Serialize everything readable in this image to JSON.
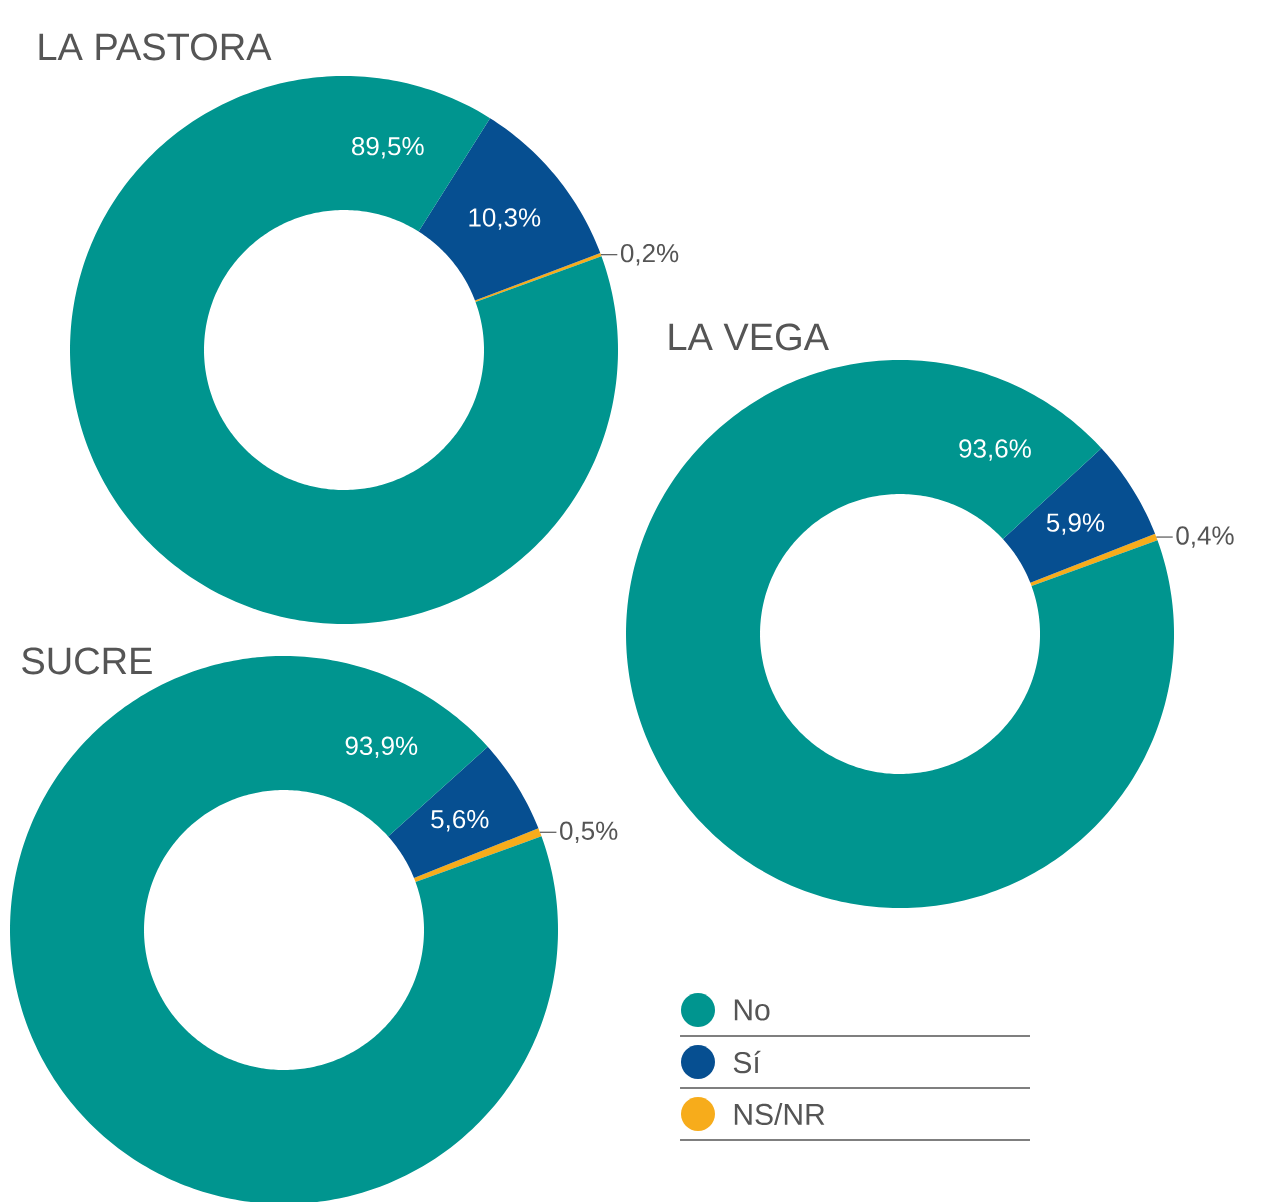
{
  "chart_data": [
    {
      "type": "donut",
      "title": "LA PASTORA",
      "categories": [
        null,
        null,
        null
      ],
      "values": [
        89.5,
        10.3,
        0.2
      ],
      "colors": [
        "#00958f",
        "#064f91",
        "#f7ac1b"
      ],
      "value_labels": [
        "89,5%",
        "10,3%",
        "0,2%"
      ],
      "legend": false
    },
    {
      "type": "donut",
      "title": "LA VEGA",
      "categories": [
        null,
        null,
        null
      ],
      "values": [
        93.6,
        5.9,
        0.4
      ],
      "colors": [
        "#00958f",
        "#064f91",
        "#f7ac1b"
      ],
      "value_labels": [
        "93,6%",
        "5,9%",
        "0,4%"
      ],
      "legend": false
    },
    {
      "type": "donut",
      "title": "SUCRE",
      "categories": [
        "No",
        "Sí",
        "NS/NR"
      ],
      "values": [
        93.9,
        5.6,
        0.5
      ],
      "colors": [
        "#00958f",
        "#064f91",
        "#f7ac1b"
      ],
      "value_labels": [
        "93,9%",
        "5,6%",
        "0,5%"
      ],
      "legend": "right"
    }
  ]
}
